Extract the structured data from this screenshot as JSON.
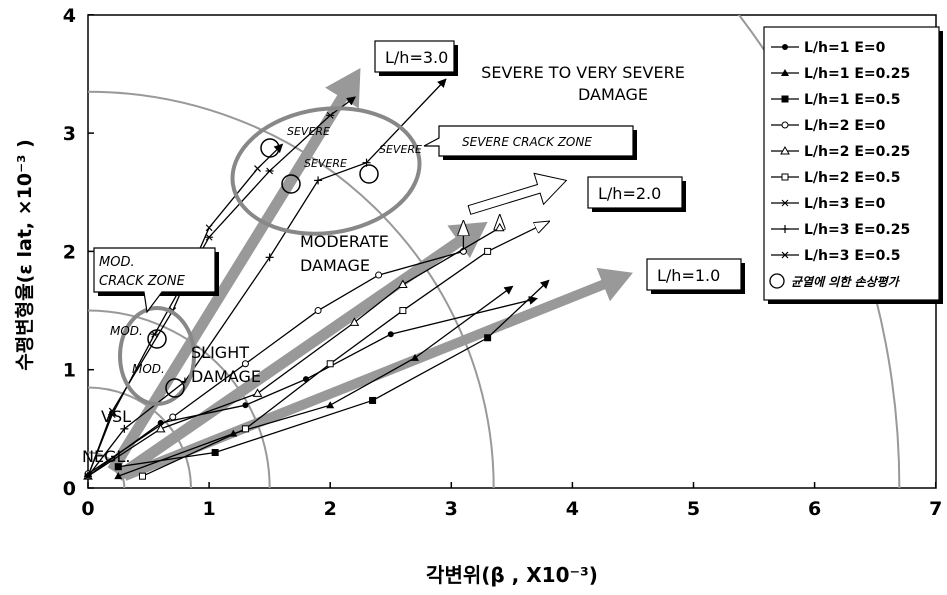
{
  "chart_data": {
    "type": "line",
    "xlabel": "각변위(β , X10⁻³)",
    "ylabel": "수평변형율(ε lat, ×10⁻³ )",
    "xlim": [
      0,
      7
    ],
    "ylim": [
      0,
      4
    ],
    "xticks": [
      "0",
      "1",
      "2",
      "3",
      "4",
      "5",
      "6",
      "7"
    ],
    "yticks": [
      "0",
      "1",
      "2",
      "3",
      "4"
    ],
    "grid": false,
    "legend_position": "top-right",
    "series": [
      {
        "name": "L/h=1 E=0",
        "x": [
          0.0,
          0.6,
          1.3,
          1.8,
          2.5,
          3.7
        ],
        "y": [
          0.1,
          0.55,
          0.7,
          0.92,
          1.3,
          1.6
        ]
      },
      {
        "name": "L/h=1 E=0.25",
        "x": [
          0.25,
          1.2,
          2.0,
          2.7,
          3.5
        ],
        "y": [
          0.1,
          0.46,
          0.7,
          1.1,
          1.7
        ]
      },
      {
        "name": "L/h=1 E=0.5",
        "x": [
          0.25,
          1.05,
          2.35,
          3.3,
          3.8
        ],
        "y": [
          0.18,
          0.3,
          0.74,
          1.27,
          1.75
        ]
      },
      {
        "name": "L/h=2 E=0",
        "x": [
          0.0,
          0.7,
          1.3,
          1.9,
          2.4,
          3.1,
          3.1
        ],
        "y": [
          0.12,
          0.6,
          1.05,
          1.5,
          1.8,
          2.0,
          2.25
        ]
      },
      {
        "name": "L/h=2 E=0.25",
        "x": [
          0.0,
          0.6,
          1.4,
          2.2,
          2.6,
          3.4,
          3.4
        ],
        "y": [
          0.1,
          0.5,
          0.8,
          1.4,
          1.72,
          2.2,
          2.3
        ]
      },
      {
        "name": "L/h=2 E=0.5",
        "x": [
          0.45,
          1.3,
          2.0,
          2.6,
          3.3,
          3.8
        ],
        "y": [
          0.1,
          0.5,
          1.05,
          1.5,
          2.0,
          2.25
        ]
      },
      {
        "name": "L/h=3 E=0",
        "x": [
          0.0,
          0.2,
          0.55,
          1.0,
          1.5,
          2.0,
          2.2
        ],
        "y": [
          0.1,
          0.62,
          1.3,
          2.12,
          2.68,
          3.15,
          3.3
        ]
      },
      {
        "name": "L/h=3 E=0.25",
        "x": [
          0.0,
          0.3,
          0.8,
          1.5,
          1.9,
          2.3,
          2.95
        ],
        "y": [
          0.1,
          0.5,
          0.9,
          1.95,
          2.6,
          2.75,
          3.45
        ]
      },
      {
        "name": "L/h=3 E=0.5",
        "x": [
          0.0,
          0.2,
          0.7,
          1.0,
          1.4,
          1.6
        ],
        "y": [
          0.1,
          0.65,
          1.5,
          2.2,
          2.7,
          2.9
        ]
      }
    ],
    "damage_boundaries": [
      {
        "x": 0.3,
        "y": 0.0
      },
      {
        "x": 0.85,
        "y": 0.0
      },
      {
        "x": 1.5,
        "y": 0.0
      },
      {
        "x": 3.35,
        "y": 0.0
      },
      {
        "x": 6.7,
        "y": 0.0
      }
    ],
    "zone_labels": {
      "severe_to_very_severe": [
        "SEVERE TO VERY SEVERE",
        "DAMAGE"
      ],
      "moderate": [
        "MODERATE",
        "DAMAGE"
      ],
      "slight": [
        "SLIGHT",
        "DAMAGE"
      ],
      "vsl": "VSL",
      "negl": "NEGL."
    },
    "callouts": {
      "lh3": "L/h=3.0",
      "lh2": "L/h=2.0",
      "lh1": "L/h=1.0",
      "severe_crack_zone": "SEVERE CRACK ZONE",
      "mod_crack_zone": [
        "MOD.",
        "CRACK ZONE"
      ]
    },
    "point_labels": {
      "severe": "SEVERE",
      "severe2": "SEVERE",
      "severe3": "SEVERE",
      "mod": "MOD.",
      "mod2": "MOD."
    },
    "crack_marker_legend": "균열에 의한 손상평가"
  }
}
